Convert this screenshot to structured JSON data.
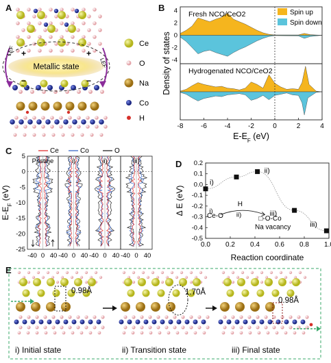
{
  "panels": {
    "A": "A",
    "B": "B",
    "C": "C",
    "D": "D",
    "E": "E"
  },
  "panelA": {
    "metallic": "Metallic state",
    "lef": "LEF",
    "plus": "+",
    "minus": "−",
    "legend": [
      {
        "symbol": "Ce",
        "color": "#d9db4a"
      },
      {
        "symbol": "O",
        "color": "#f2c7c9"
      },
      {
        "symbol": "Na",
        "color": "#c99a2e"
      },
      {
        "symbol": "Co",
        "color": "#2d3fa0"
      },
      {
        "symbol": "H",
        "color": "#d6302a"
      }
    ]
  },
  "chart_data": [
    {
      "type": "area",
      "id": "B",
      "title_top": "Fresh NCO/CeO2",
      "title_bottom": "Hydrogenated NCO/CeO2",
      "xlabel": "E-E_F (eV)",
      "ylabel": "Density of states",
      "xlim": [
        -8,
        4
      ],
      "xticks": [
        "-8",
        "-6",
        "-4",
        "-2",
        "0",
        "2",
        "4"
      ],
      "yticks": [
        "-4",
        "-2",
        "0",
        "2",
        "4"
      ],
      "legend": [
        {
          "name": "Spin up",
          "color": "#f5b51e"
        },
        {
          "name": "Spin down",
          "color": "#5bc4dc"
        }
      ],
      "fresh_up": [
        [
          -8,
          0.3
        ],
        [
          -7.5,
          0.8
        ],
        [
          -7,
          1.5
        ],
        [
          -6.5,
          2.8
        ],
        [
          -6,
          2.5
        ],
        [
          -5.5,
          2.2
        ],
        [
          -5,
          2.6
        ],
        [
          -4.5,
          2.9
        ],
        [
          -4,
          3.6
        ],
        [
          -3.5,
          2.6
        ],
        [
          -3,
          2.2
        ],
        [
          -2.5,
          1.8
        ],
        [
          -2,
          1.3
        ],
        [
          -1.5,
          0.8
        ],
        [
          -1,
          0.4
        ],
        [
          -0.5,
          0.15
        ],
        [
          0,
          0.05
        ],
        [
          2,
          0.05
        ],
        [
          2.5,
          0.3
        ],
        [
          3,
          0.1
        ],
        [
          4,
          0
        ]
      ],
      "fresh_down": [
        [
          -8,
          -0.3
        ],
        [
          -7.5,
          -1.0
        ],
        [
          -7,
          -2.0
        ],
        [
          -6.5,
          -3.0
        ],
        [
          -6,
          -2.6
        ],
        [
          -5.5,
          -2.4
        ],
        [
          -5,
          -2.8
        ],
        [
          -4.5,
          -3.1
        ],
        [
          -4,
          -3.4
        ],
        [
          -3.5,
          -2.8
        ],
        [
          -3,
          -2.3
        ],
        [
          -2.5,
          -1.9
        ],
        [
          -2,
          -1.4
        ],
        [
          -1.5,
          -0.9
        ],
        [
          -1,
          -0.5
        ],
        [
          -0.5,
          -0.2
        ],
        [
          0,
          -0.05
        ],
        [
          2,
          -0.1
        ],
        [
          2.5,
          -0.5
        ],
        [
          3,
          -0.2
        ],
        [
          4,
          0
        ]
      ],
      "hyd_up": [
        [
          -8,
          0.1
        ],
        [
          -7.5,
          0.4
        ],
        [
          -7,
          1.0
        ],
        [
          -6.5,
          1.5
        ],
        [
          -6,
          1.2
        ],
        [
          -5.5,
          1.0
        ],
        [
          -5,
          0.8
        ],
        [
          -4.5,
          0.9
        ],
        [
          -4,
          0.6
        ],
        [
          -3.5,
          0.5
        ],
        [
          -3,
          0.3
        ],
        [
          -2.5,
          0.6
        ],
        [
          -2,
          1.6
        ],
        [
          -1.5,
          1.2
        ],
        [
          -1,
          0.6
        ],
        [
          -0.5,
          2.8
        ],
        [
          0,
          1.4
        ],
        [
          0.5,
          0.8
        ],
        [
          1,
          0.4
        ],
        [
          1.5,
          0.5
        ],
        [
          2,
          0.4
        ],
        [
          2.3,
          1.5
        ],
        [
          2.6,
          4.2
        ],
        [
          2.9,
          1.2
        ],
        [
          3.5,
          0.1
        ],
        [
          4,
          0
        ]
      ],
      "hyd_down": [
        [
          -8,
          -0.1
        ],
        [
          -7.5,
          -0.4
        ],
        [
          -7,
          -1.0
        ],
        [
          -6.5,
          -1.5
        ],
        [
          -6,
          -1.1
        ],
        [
          -5.5,
          -0.9
        ],
        [
          -5,
          -0.7
        ],
        [
          -4.5,
          -0.8
        ],
        [
          -4,
          -0.5
        ],
        [
          -3.5,
          -0.4
        ],
        [
          -3,
          -0.3
        ],
        [
          -2.5,
          -0.5
        ],
        [
          -2,
          -1.4
        ],
        [
          -1.5,
          -1.1
        ],
        [
          -1,
          -0.6
        ],
        [
          -0.5,
          -1.3
        ],
        [
          0,
          -0.6
        ],
        [
          0.5,
          -0.4
        ],
        [
          1,
          -0.2
        ],
        [
          1.5,
          -0.5
        ],
        [
          2,
          -0.6
        ],
        [
          2.3,
          -1.8
        ],
        [
          2.5,
          -3.8
        ],
        [
          2.8,
          -1.0
        ],
        [
          3.5,
          -0.1
        ],
        [
          4,
          0
        ]
      ]
    },
    {
      "type": "line",
      "id": "C",
      "ylabel": "E-E_F (eV)",
      "ylim": [
        -25,
        5
      ],
      "yticks": [
        "5",
        "0",
        "-5",
        "-10",
        "-15",
        "-20",
        "-25"
      ],
      "legend": [
        {
          "name": "Ce",
          "color": "#e03030"
        },
        {
          "name": "Co",
          "color": "#3a66c7"
        },
        {
          "name": "O",
          "color": "#222222"
        }
      ],
      "subpanels": [
        "Pristine",
        "i)",
        "ii)",
        "iii)"
      ],
      "xticks": [
        "-40",
        "0",
        "40"
      ]
    },
    {
      "type": "scatter",
      "id": "D",
      "xlabel": "Reaction coordinate",
      "ylabel": "Δ E (eV)",
      "xlim": [
        0,
        1
      ],
      "ylim": [
        -0.5,
        0.2
      ],
      "xticks": [
        "0.0",
        "0.2",
        "0.4",
        "0.6",
        "0.8",
        "1.0"
      ],
      "yticks": [
        "0.2",
        "0.1",
        "0.0",
        "-0.1",
        "-0.2",
        "-0.3",
        "-0.4",
        "-0.5"
      ],
      "points": [
        {
          "x": 0.0,
          "y": -0.04
        },
        {
          "x": 0.25,
          "y": 0.07
        },
        {
          "x": 0.42,
          "y": 0.12
        },
        {
          "x": 0.72,
          "y": -0.24
        },
        {
          "x": 0.98,
          "y": -0.43
        }
      ],
      "point_labels": [
        "i)",
        "ii)",
        "iii)",
        "iii)"
      ],
      "scheme": {
        "left": "Ce-O",
        "over_arrow": "H",
        "step_i": "i)",
        "step_ii": "ii)",
        "right": "□-O-Co",
        "vacancy": "Na vacancy"
      }
    }
  ],
  "panelE": {
    "captions": [
      "i) Initial state",
      "ii) Transition state",
      "iii) Final state"
    ],
    "distances": [
      "0.98Å",
      "1.70Å",
      "0.98Å"
    ]
  }
}
